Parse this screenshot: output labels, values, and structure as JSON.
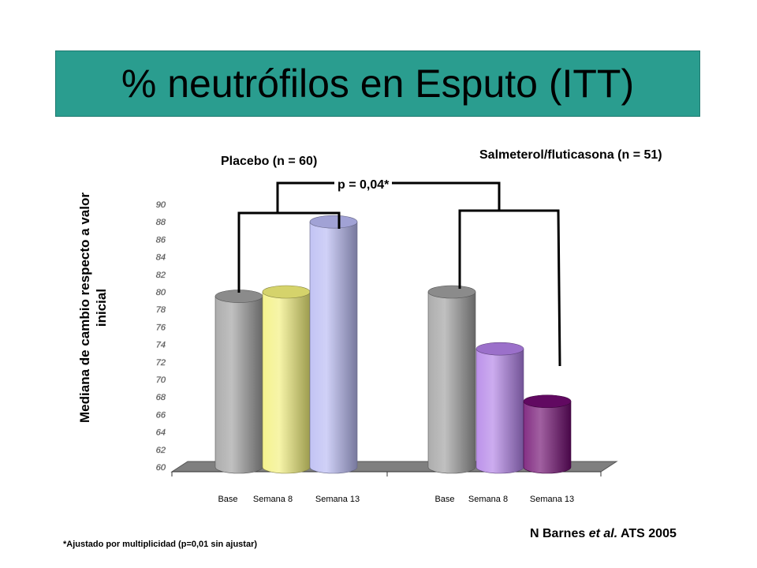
{
  "title": "% neutrófilos en Esputo (ITT)",
  "ylabel_line1": "Mediana de cambio respecto a valor",
  "ylabel_line2": "inicial",
  "groups": {
    "placebo": "Placebo (n = 60)",
    "salmeterol": "Salmeterol/fluticasona (n = 51)"
  },
  "p_value": "p = 0,04*",
  "source_prefix": "N Barnes ",
  "source_italic": "et al.",
  "source_suffix": " ATS 2005",
  "footnote": "*Ajustado por multiplicidad (p=0,01 sin ajustar)",
  "chart_data": {
    "type": "bar",
    "categories": [
      "Base",
      "Semana 8",
      "Semana 13",
      "Base",
      "Semana 8",
      "Semana 13"
    ],
    "group_names": [
      "Placebo (n = 60)",
      "Salmeterol/fluticasona (n = 51)"
    ],
    "values": [
      79.5,
      80,
      88,
      80,
      73.5,
      67.5
    ],
    "colors": [
      "#9e9e9e",
      "#f2f07a",
      "#b7b8f2",
      "#9e9e9e",
      "#b07fe6",
      "#6e0a6e"
    ],
    "ylim": [
      60,
      90
    ],
    "yticks": [
      "60",
      "62",
      "64",
      "66",
      "68",
      "70",
      "72",
      "74",
      "76",
      "78",
      "80",
      "82",
      "84",
      "86",
      "88",
      "90"
    ],
    "yticks_legible": false,
    "xlabel": "",
    "ylabel": "Mediana de cambio respecto a valor inicial"
  }
}
